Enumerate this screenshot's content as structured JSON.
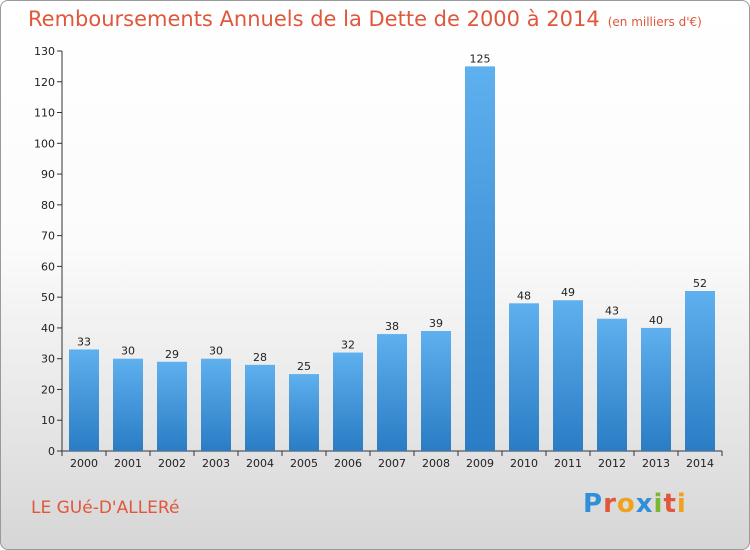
{
  "header": {
    "title": "Remboursements Annuels de la Dette de 2000 à 2014",
    "subtitle": "(en milliers d'€)"
  },
  "footer": {
    "commune": "LE GUé-D'ALLERé",
    "logo_text": "Proxiti",
    "logo_letters": [
      {
        "ch": "P",
        "color": "#2f8fd8"
      },
      {
        "ch": "r",
        "color": "#e0573b"
      },
      {
        "ch": "o",
        "color": "#f0a21e"
      },
      {
        "ch": "x",
        "color": "#2f8fd8"
      },
      {
        "ch": "i",
        "color": "#7ab833"
      },
      {
        "ch": "t",
        "color": "#e0573b"
      },
      {
        "ch": "i",
        "color": "#f0a21e"
      }
    ]
  },
  "chart_data": {
    "type": "bar",
    "title": "Remboursements Annuels de la Dette de 2000 à 2014",
    "subtitle": "(en milliers d'€)",
    "categories": [
      "2000",
      "2001",
      "2002",
      "2003",
      "2004",
      "2005",
      "2006",
      "2007",
      "2008",
      "2009",
      "2010",
      "2011",
      "2012",
      "2013",
      "2014"
    ],
    "values": [
      33,
      30,
      29,
      30,
      28,
      25,
      32,
      38,
      39,
      125,
      48,
      49,
      43,
      40,
      52
    ],
    "ylim": [
      0,
      130
    ],
    "yticks": [
      0,
      10,
      20,
      30,
      40,
      50,
      60,
      70,
      80,
      90,
      100,
      110,
      120,
      130
    ],
    "grid": false,
    "bar_color": "#4f9fe0"
  }
}
